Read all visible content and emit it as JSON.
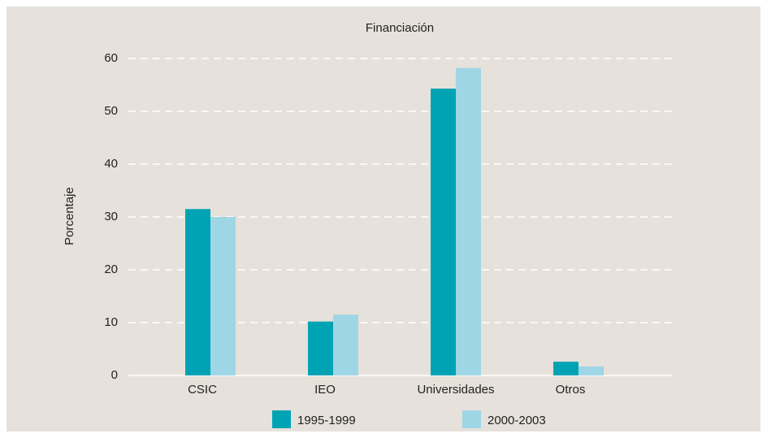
{
  "chart_data": {
    "type": "bar",
    "title": "Financiación",
    "y_label": "Porcentaje",
    "categories": [
      "CSIC",
      "IEO",
      "Universidades",
      "Otros"
    ],
    "series": [
      {
        "name": "1995-1999",
        "color": "#00a3b4",
        "values": [
          31.5,
          10.2,
          54.3,
          2.6
        ]
      },
      {
        "name": "2000-2003",
        "color": "#9fd6e6",
        "values": [
          30,
          11.5,
          58.2,
          1.7
        ]
      }
    ],
    "ylim": [
      0,
      60
    ],
    "yticks": [
      0,
      10,
      20,
      30,
      40,
      50,
      60
    ],
    "grid": true
  }
}
